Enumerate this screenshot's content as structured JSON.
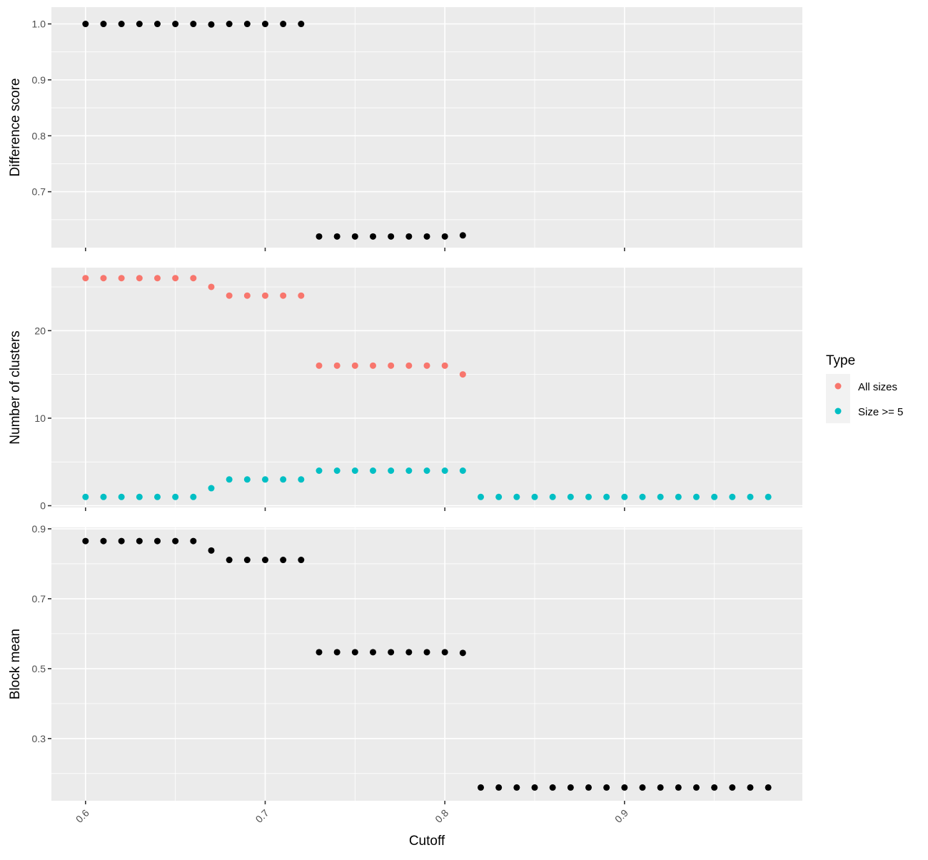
{
  "chart_data": {
    "type": "scatter",
    "x_axis": {
      "label": "Cutoff",
      "lim": [
        0.581,
        0.999
      ],
      "ticks": [
        0.6,
        0.7,
        0.8,
        0.9
      ],
      "tick_labels": [
        "0.6",
        "0.7",
        "0.8",
        "0.9"
      ],
      "tick_label_rotation": "45 degrees"
    },
    "legend": {
      "title": "Type",
      "placement": "right",
      "entries": [
        {
          "label": "All sizes",
          "color": "#F8766D"
        },
        {
          "label": "Size >= 5",
          "color": "#00BFC4"
        }
      ]
    },
    "panels": [
      {
        "ylabel": "Difference score",
        "ylim": [
          0.6,
          1.03
        ],
        "yticks": [
          0.7,
          0.8,
          0.9,
          1.0
        ],
        "ytick_labels": [
          "0.7",
          "0.8",
          "0.9",
          "1.0"
        ],
        "series": [
          {
            "color": "#000000",
            "x": [
              0.6,
              0.61,
              0.62,
              0.63,
              0.64,
              0.65,
              0.66,
              0.67,
              0.68,
              0.69,
              0.7,
              0.71,
              0.72,
              0.73,
              0.74,
              0.75,
              0.76,
              0.77,
              0.78,
              0.79,
              0.8,
              0.81
            ],
            "y": [
              1.0,
              1.0,
              1.0,
              1.0,
              1.0,
              1.0,
              1.0,
              0.999,
              1.0,
              1.0,
              1.0,
              1.0,
              1.0,
              0.62,
              0.62,
              0.62,
              0.62,
              0.62,
              0.62,
              0.62,
              0.62,
              0.622
            ]
          }
        ]
      },
      {
        "ylabel": "Number of clusters",
        "ylim": [
          -0.2,
          27.2
        ],
        "yticks": [
          0,
          10,
          20
        ],
        "ytick_labels": [
          "0",
          "10",
          "20"
        ],
        "series": [
          {
            "name": "All sizes",
            "color": "#F8766D",
            "x": [
              0.6,
              0.61,
              0.62,
              0.63,
              0.64,
              0.65,
              0.66,
              0.67,
              0.68,
              0.69,
              0.7,
              0.71,
              0.72,
              0.73,
              0.74,
              0.75,
              0.76,
              0.77,
              0.78,
              0.79,
              0.8,
              0.81
            ],
            "y": [
              26,
              26,
              26,
              26,
              26,
              26,
              26,
              25,
              24,
              24,
              24,
              24,
              24,
              16,
              16,
              16,
              16,
              16,
              16,
              16,
              16,
              15
            ]
          },
          {
            "name": "Size >= 5",
            "color": "#00BFC4",
            "x": [
              0.6,
              0.61,
              0.62,
              0.63,
              0.64,
              0.65,
              0.66,
              0.67,
              0.68,
              0.69,
              0.7,
              0.71,
              0.72,
              0.73,
              0.74,
              0.75,
              0.76,
              0.77,
              0.78,
              0.79,
              0.8,
              0.81,
              0.82,
              0.83,
              0.84,
              0.85,
              0.86,
              0.87,
              0.88,
              0.89,
              0.9,
              0.91,
              0.92,
              0.93,
              0.94,
              0.95,
              0.96,
              0.97,
              0.98
            ],
            "y": [
              1,
              1,
              1,
              1,
              1,
              1,
              1,
              2,
              3,
              3,
              3,
              3,
              3,
              4,
              4,
              4,
              4,
              4,
              4,
              4,
              4,
              4,
              1,
              1,
              1,
              1,
              1,
              1,
              1,
              1,
              1,
              1,
              1,
              1,
              1,
              1,
              1,
              1,
              1
            ]
          }
        ]
      },
      {
        "ylabel": "Block mean",
        "ylim": [
          0.122,
          0.904
        ],
        "yticks": [
          0.3,
          0.5,
          0.7,
          0.9
        ],
        "ytick_labels": [
          "0.3",
          "0.5",
          "0.7",
          "0.9"
        ],
        "series": [
          {
            "color": "#000000",
            "x": [
              0.6,
              0.61,
              0.62,
              0.63,
              0.64,
              0.65,
              0.66,
              0.67,
              0.68,
              0.69,
              0.7,
              0.71,
              0.72,
              0.73,
              0.74,
              0.75,
              0.76,
              0.77,
              0.78,
              0.79,
              0.8,
              0.81,
              0.82,
              0.83,
              0.84,
              0.85,
              0.86,
              0.87,
              0.88,
              0.89,
              0.9,
              0.91,
              0.92,
              0.93,
              0.94,
              0.95,
              0.96,
              0.97,
              0.98
            ],
            "y": [
              0.865,
              0.865,
              0.865,
              0.865,
              0.865,
              0.865,
              0.865,
              0.838,
              0.811,
              0.811,
              0.811,
              0.811,
              0.811,
              0.547,
              0.547,
              0.547,
              0.547,
              0.547,
              0.547,
              0.547,
              0.547,
              0.545,
              0.16,
              0.16,
              0.16,
              0.16,
              0.16,
              0.16,
              0.16,
              0.16,
              0.16,
              0.16,
              0.16,
              0.16,
              0.16,
              0.16,
              0.16,
              0.16,
              0.16
            ]
          }
        ]
      }
    ]
  }
}
